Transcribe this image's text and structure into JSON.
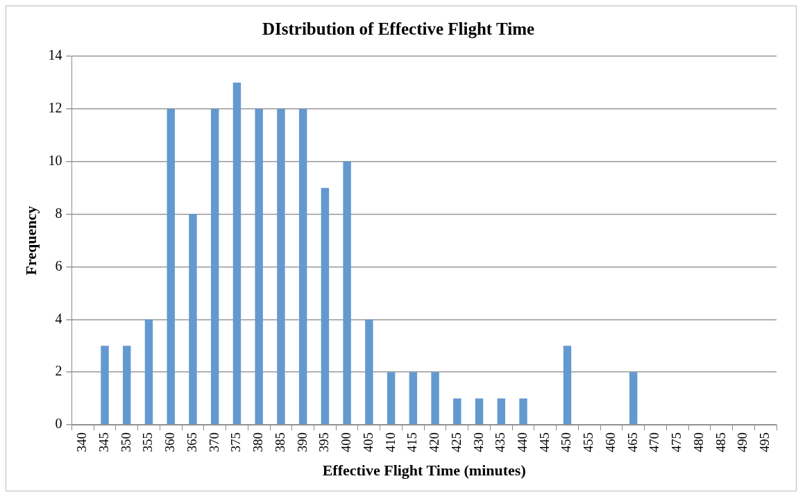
{
  "chart_data": {
    "type": "bar",
    "title": "DIstribution of Effective Flight Time",
    "xlabel": "Effective Flight Time (minutes)",
    "ylabel": "Frequency",
    "categories": [
      "340",
      "345",
      "350",
      "355",
      "360",
      "365",
      "370",
      "375",
      "380",
      "385",
      "390",
      "395",
      "400",
      "405",
      "410",
      "415",
      "420",
      "425",
      "430",
      "435",
      "440",
      "445",
      "450",
      "455",
      "460",
      "465",
      "470",
      "475",
      "480",
      "485",
      "490",
      "495"
    ],
    "values": [
      0,
      3,
      3,
      4,
      12,
      8,
      12,
      13,
      12,
      12,
      12,
      9,
      10,
      4,
      2,
      2,
      2,
      1,
      1,
      1,
      1,
      0,
      3,
      0,
      0,
      2,
      0,
      0,
      0,
      0,
      0,
      0
    ],
    "color": "#6399cf",
    "ylim": [
      0,
      14
    ],
    "yticks": [
      0,
      2,
      4,
      6,
      8,
      10,
      12,
      14
    ],
    "grid": "y",
    "legend": false
  }
}
